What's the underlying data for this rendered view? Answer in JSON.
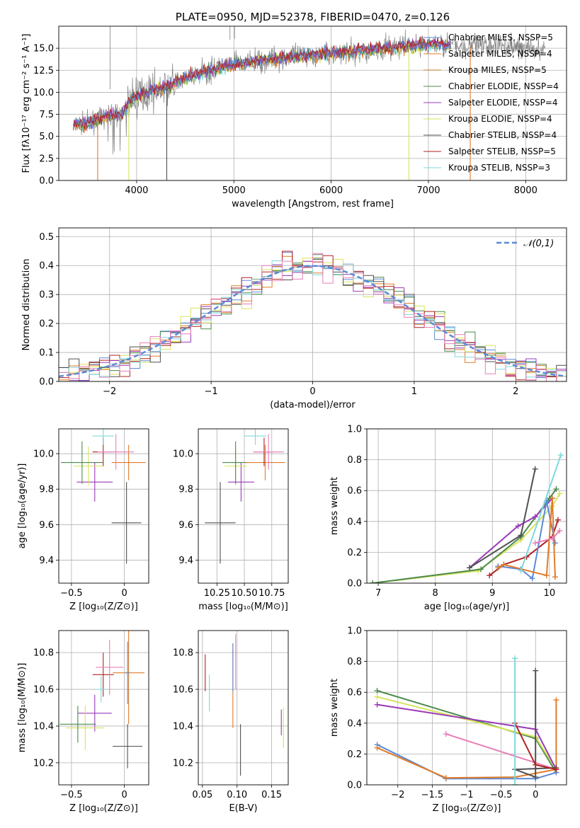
{
  "colors": {
    "chabrier_miles": "#5b8ad6",
    "salpeter_miles": "#e07b28",
    "kroupa_miles": "#c87c2a",
    "chabrier_elodie": "#4d8a4d",
    "salpeter_elodie": "#9a39b8",
    "kroupa_elodie": "#d7e35a",
    "chabrier_stelib": "#505050",
    "salpeter_stelib": "#b22222",
    "kroupa_stelib": "#7fd8dc",
    "pink": "#e87fb8",
    "data": "#808080",
    "grid": "#b0b0b0"
  },
  "chart_data": [
    {
      "id": "spectrum",
      "type": "line",
      "title": "PLATE=0950, MJD=52378, FIBERID=0470, z=0.126",
      "xlabel": "wavelength [Angstrom, rest frame]",
      "ylabel": "Flux [fλ10⁻¹⁷ erg cm⁻² s⁻¹ A⁻¹]",
      "xlim": [
        3200,
        8420
      ],
      "ylim": [
        0,
        17.5
      ],
      "xticks": [
        4000,
        5000,
        6000,
        7000,
        8000
      ],
      "yticks": [
        0.0,
        2.5,
        5.0,
        7.5,
        10.0,
        12.5,
        15.0
      ],
      "grid": true,
      "legend_position": "right",
      "legend": [
        {
          "label": "Chabrier MILES, NSSP=5",
          "color": "chabrier_miles"
        },
        {
          "label": "Salpeter MILES, NSSP=4",
          "color": "salpeter_miles"
        },
        {
          "label": "Kroupa MILES, NSSP=5",
          "color": "kroupa_miles"
        },
        {
          "label": "Chabrier ELODIE, NSSP=4",
          "color": "chabrier_elodie"
        },
        {
          "label": "Salpeter ELODIE, NSSP=4",
          "color": "salpeter_elodie"
        },
        {
          "label": "Kroupa ELODIE, NSSP=4",
          "color": "kroupa_elodie"
        },
        {
          "label": "Chabrier STELIB, NSSP=4",
          "color": "chabrier_stelib"
        },
        {
          "label": "Salpeter STELIB, NSSP=5",
          "color": "salpeter_stelib"
        },
        {
          "label": "Kroupa STELIB, NSSP=3",
          "color": "kroupa_stelib"
        }
      ],
      "continuum_knots": [
        [
          3350,
          6.3
        ],
        [
          3500,
          6.5
        ],
        [
          3700,
          7.3
        ],
        [
          3850,
          7.6
        ],
        [
          3950,
          9.2
        ],
        [
          4100,
          9.9
        ],
        [
          4300,
          10.6
        ],
        [
          4500,
          11.6
        ],
        [
          4800,
          12.6
        ],
        [
          5100,
          13.3
        ],
        [
          5500,
          13.9
        ],
        [
          6000,
          14.4
        ],
        [
          6500,
          14.9
        ],
        [
          7000,
          15.4
        ],
        [
          7500,
          15.3
        ],
        [
          8000,
          15.1
        ],
        [
          8200,
          14.8
        ]
      ],
      "data_x_range": [
        3350,
        8200
      ],
      "model_x_range": [
        3350,
        7230
      ],
      "drops": [
        {
          "x": 3600,
          "color": "salpeter_miles"
        },
        {
          "x": 3920,
          "color": "kroupa_elodie"
        },
        {
          "x": 4310,
          "color": "chabrier_stelib"
        },
        {
          "x": 6800,
          "color": "kroupa_elodie"
        },
        {
          "x": 7430,
          "color": "salpeter_miles"
        }
      ]
    },
    {
      "id": "residuals",
      "type": "bar",
      "xlabel": "(data-model)/error",
      "ylabel": "Normed distribution",
      "xlim": [
        -2.5,
        2.5
      ],
      "ylim": [
        0,
        0.53
      ],
      "xticks": [
        -2,
        -1,
        0,
        1,
        2
      ],
      "yticks": [
        0.0,
        0.1,
        0.2,
        0.3,
        0.4,
        0.5
      ],
      "grid": true,
      "bin_width": 0.1,
      "gaussian_label": "𝒩(0,1)",
      "legend_position": "upper right"
    },
    {
      "id": "age_vs_Z",
      "type": "scatter",
      "xlabel": "Z [log₁₀(Z/Z⊙)]",
      "ylabel": "age  [log₁₀(age/yr)]",
      "xlim": [
        -0.62,
        0.23
      ],
      "ylim": [
        9.27,
        10.14
      ],
      "xticks": [
        -0.5,
        0.0
      ],
      "yticks": [
        9.4,
        9.6,
        9.8,
        10.0
      ],
      "grid": true,
      "points": [
        {
          "x": 0.02,
          "y": 9.61,
          "xerr": 0.14,
          "yerr": 0.23,
          "color": "chabrier_stelib"
        },
        {
          "x": -0.28,
          "y": 9.84,
          "xerr": 0.17,
          "yerr": 0.11,
          "color": "salpeter_elodie"
        },
        {
          "x": -0.34,
          "y": 9.93,
          "xerr": 0.14,
          "yerr": 0.11,
          "color": "kroupa_elodie"
        },
        {
          "x": -0.4,
          "y": 9.95,
          "xerr": 0.2,
          "yerr": 0.12,
          "color": "chabrier_elodie"
        },
        {
          "x": 0.04,
          "y": 9.95,
          "xerr": 0.16,
          "yerr": 0.1,
          "color": "salpeter_miles"
        },
        {
          "x": -0.2,
          "y": 10.01,
          "xerr": 0.1,
          "yerr": 0.08,
          "color": "salpeter_stelib"
        },
        {
          "x": -0.08,
          "y": 10.01,
          "xerr": 0.17,
          "yerr": 0.1,
          "color": "pink"
        },
        {
          "x": -0.2,
          "y": 10.1,
          "xerr": 0.1,
          "yerr": 0.05,
          "color": "kroupa_stelib"
        }
      ]
    },
    {
      "id": "age_vs_mass",
      "type": "scatter",
      "xlabel": "mass [log₁₀(M/M⊙)]",
      "ylabel": "",
      "xlim": [
        10.08,
        10.9
      ],
      "ylim": [
        9.27,
        10.14
      ],
      "xticks": [
        10.25,
        10.5,
        10.75
      ],
      "xtick_labels": [
        "10.25",
        "10.50",
        "10.75"
      ],
      "yticks": [
        9.4,
        9.6,
        9.8,
        10.0
      ],
      "grid": true,
      "points": [
        {
          "x": 10.28,
          "y": 9.61,
          "xerr": 0.14,
          "yerr": 0.23,
          "color": "chabrier_stelib"
        },
        {
          "x": 10.47,
          "y": 9.84,
          "xerr": 0.12,
          "yerr": 0.11,
          "color": "salpeter_elodie"
        },
        {
          "x": 10.42,
          "y": 9.93,
          "xerr": 0.1,
          "yerr": 0.11,
          "color": "kroupa_elodie"
        },
        {
          "x": 10.42,
          "y": 9.95,
          "xerr": 0.12,
          "yerr": 0.12,
          "color": "chabrier_elodie"
        },
        {
          "x": 10.69,
          "y": 9.95,
          "xerr": 0.18,
          "yerr": 0.1,
          "color": "salpeter_miles"
        },
        {
          "x": 10.68,
          "y": 10.01,
          "xerr": 0.09,
          "yerr": 0.08,
          "color": "salpeter_stelib"
        },
        {
          "x": 10.72,
          "y": 10.01,
          "xerr": 0.14,
          "yerr": 0.1,
          "color": "pink"
        },
        {
          "x": 10.6,
          "y": 10.1,
          "xerr": 0.1,
          "yerr": 0.05,
          "color": "kroupa_stelib"
        }
      ]
    },
    {
      "id": "massweight_vs_age",
      "type": "line",
      "xlabel": "age  [log₁₀(age/yr)]",
      "ylabel": "mass weight",
      "xlim": [
        6.8,
        10.3
      ],
      "ylim": [
        0,
        1.0
      ],
      "xticks": [
        7,
        8,
        9,
        10
      ],
      "yticks": [
        0.0,
        0.2,
        0.4,
        0.6,
        0.8,
        1.0
      ],
      "grid": true,
      "series": [
        {
          "color": "kroupa_elodie",
          "x": [
            6.9,
            8.75,
            9.5,
            10.05,
            10.18
          ],
          "y": [
            0.0,
            0.08,
            0.28,
            0.5,
            0.58
          ]
        },
        {
          "color": "chabrier_elodie",
          "x": [
            6.9,
            8.8,
            9.5,
            10.0,
            10.12
          ],
          "y": [
            0.0,
            0.09,
            0.3,
            0.55,
            0.61
          ]
        },
        {
          "color": "salpeter_elodie",
          "x": [
            8.6,
            9.45,
            9.75,
            10.05
          ],
          "y": [
            0.1,
            0.37,
            0.43,
            0.55
          ]
        },
        {
          "color": "chabrier_stelib",
          "x": [
            8.6,
            9.5,
            9.75
          ],
          "y": [
            0.1,
            0.31,
            0.74
          ]
        },
        {
          "color": "salpeter_stelib",
          "x": [
            8.95,
            9.2,
            9.6,
            10.05,
            10.15
          ],
          "y": [
            0.05,
            0.12,
            0.17,
            0.3,
            0.41
          ]
        },
        {
          "color": "chabrier_miles",
          "x": [
            9.1,
            9.5,
            9.7,
            9.95,
            10.1
          ],
          "y": [
            0.11,
            0.09,
            0.03,
            0.53,
            0.26
          ]
        },
        {
          "color": "salpeter_miles",
          "x": [
            9.1,
            9.2,
            9.95,
            10.05,
            10.1
          ],
          "y": [
            0.1,
            0.12,
            0.05,
            0.55,
            0.04
          ]
        },
        {
          "color": "pink",
          "x": [
            9.75,
            10.05,
            10.18
          ],
          "y": [
            0.26,
            0.29,
            0.34
          ]
        },
        {
          "color": "kroupa_stelib",
          "x": [
            9.5,
            10.2
          ],
          "y": [
            0.08,
            0.83
          ]
        }
      ]
    },
    {
      "id": "mass_vs_Z",
      "type": "scatter",
      "xlabel": "Z [log₁₀(Z/Z⊙)]",
      "ylabel": "mass [log₁₀(M/M⊙)]",
      "xlim": [
        -0.62,
        0.23
      ],
      "ylim": [
        10.08,
        10.92
      ],
      "xticks": [
        -0.5,
        0.0
      ],
      "yticks": [
        10.2,
        10.4,
        10.6,
        10.8
      ],
      "grid": true,
      "points": [
        {
          "x": 0.03,
          "y": 10.29,
          "xerr": 0.14,
          "yerr": 0.12,
          "color": "chabrier_stelib"
        },
        {
          "x": -0.28,
          "y": 10.47,
          "xerr": 0.16,
          "yerr": 0.1,
          "color": "salpeter_elodie"
        },
        {
          "x": -0.37,
          "y": 10.39,
          "xerr": 0.18,
          "yerr": 0.12,
          "color": "kroupa_elodie"
        },
        {
          "x": -0.44,
          "y": 10.41,
          "xerr": 0.17,
          "yerr": 0.1,
          "color": "chabrier_elodie"
        },
        {
          "x": 0.04,
          "y": 10.69,
          "xerr": 0.15,
          "yerr": 0.28,
          "color": "salpeter_miles"
        },
        {
          "x": -0.2,
          "y": 10.68,
          "xerr": 0.1,
          "yerr": 0.12,
          "color": "salpeter_stelib"
        },
        {
          "x": -0.14,
          "y": 10.72,
          "xerr": 0.13,
          "yerr": 0.15,
          "color": "pink"
        },
        {
          "x": -0.22,
          "y": 10.6,
          "xerr": 0.05,
          "yerr": 0.07,
          "color": "kroupa_stelib"
        },
        {
          "x": 0.03,
          "y": 10.69,
          "xerr": 0.02,
          "yerr": 0.17,
          "color": "chabrier_miles"
        }
      ]
    },
    {
      "id": "mass_vs_ebv",
      "type": "scatter",
      "xlabel": "E(B-V)",
      "ylabel": "",
      "xlim": [
        0.044,
        0.174
      ],
      "ylim": [
        10.08,
        10.92
      ],
      "xticks": [
        0.05,
        0.1,
        0.15
      ],
      "xtick_labels": [
        "0.05",
        "0.10",
        "0.15"
      ],
      "yticks": [
        10.2,
        10.4,
        10.6,
        10.8
      ],
      "grid": true,
      "points": [
        {
          "x": 0.054,
          "y": 10.69,
          "yerr": 0.1,
          "color": "salpeter_stelib"
        },
        {
          "x": 0.06,
          "y": 10.58,
          "yerr": 0.1,
          "color": "kroupa_stelib"
        },
        {
          "x": 0.094,
          "y": 10.62,
          "yerr": 0.23,
          "color": "salpeter_miles"
        },
        {
          "x": 0.094,
          "y": 10.72,
          "yerr": 0.13,
          "color": "chabrier_miles"
        },
        {
          "x": 0.098,
          "y": 10.75,
          "yerr": 0.15,
          "color": "pink"
        },
        {
          "x": 0.105,
          "y": 10.27,
          "yerr": 0.14,
          "color": "chabrier_stelib"
        },
        {
          "x": 0.164,
          "y": 10.42,
          "yerr": 0.07,
          "color": "salpeter_elodie"
        },
        {
          "x": 0.167,
          "y": 10.39,
          "yerr": 0.11,
          "color": "kroupa_elodie"
        }
      ]
    },
    {
      "id": "massweight_vs_Z",
      "type": "line",
      "xlabel": "Z [log₁₀(Z/Z⊙)]",
      "ylabel": "mass weight",
      "xlim": [
        -2.45,
        0.45
      ],
      "ylim": [
        0,
        1.0
      ],
      "xticks": [
        -2.0,
        -1.5,
        -1.0,
        -0.5,
        0.0
      ],
      "yticks": [
        0.0,
        0.2,
        0.4,
        0.6,
        0.8,
        1.0
      ],
      "grid": true,
      "series": [
        {
          "color": "chabrier_elodie",
          "x": [
            -2.3,
            0.0,
            0.3
          ],
          "y": [
            0.61,
            0.3,
            0.08
          ]
        },
        {
          "color": "kroupa_elodie",
          "x": [
            -2.3,
            0.0,
            0.3
          ],
          "y": [
            0.57,
            0.31,
            0.1
          ]
        },
        {
          "color": "salpeter_elodie",
          "x": [
            -2.3,
            0.0,
            0.3
          ],
          "y": [
            0.52,
            0.36,
            0.1
          ]
        },
        {
          "color": "chabrier_miles",
          "x": [
            -2.3,
            -1.3,
            0.0,
            0.3
          ],
          "y": [
            0.26,
            0.04,
            0.04,
            0.08
          ]
        },
        {
          "color": "salpeter_miles",
          "x": [
            -2.3,
            -1.3,
            -0.3,
            0.3,
            0.3
          ],
          "y": [
            0.24,
            0.045,
            0.05,
            0.1,
            0.55
          ]
        },
        {
          "color": "pink",
          "x": [
            -1.3,
            0.3
          ],
          "y": [
            0.33,
            0.1
          ]
        },
        {
          "color": "chabrier_stelib",
          "x": [
            0.0,
            0.0,
            -0.3,
            0.3
          ],
          "y": [
            0.74,
            0.05,
            0.1,
            0.11
          ]
        },
        {
          "color": "salpeter_stelib",
          "x": [
            -0.3,
            0.0,
            0.3
          ],
          "y": [
            0.4,
            0.13,
            0.1
          ]
        },
        {
          "color": "kroupa_stelib",
          "x": [
            -0.3,
            -0.3
          ],
          "y": [
            0.82,
            0.0
          ]
        }
      ]
    }
  ]
}
